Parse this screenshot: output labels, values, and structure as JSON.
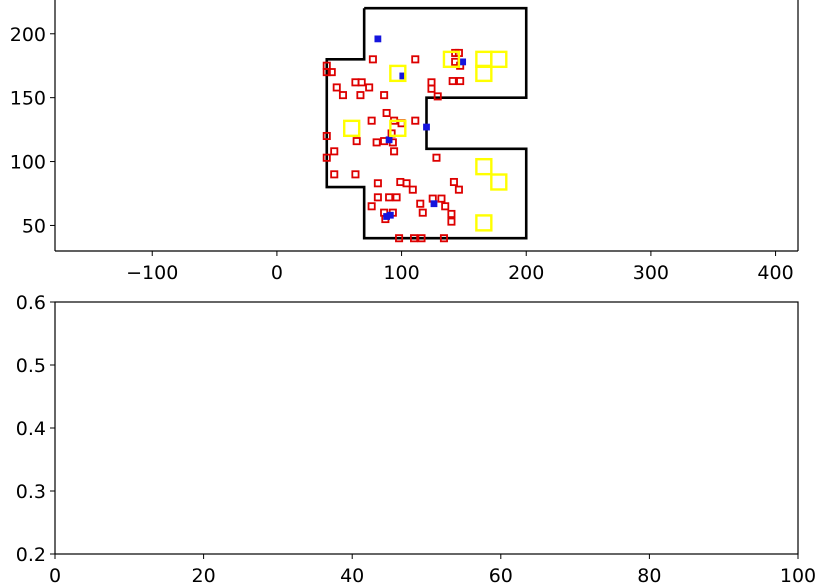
{
  "chart_data": [
    {
      "type": "scatter",
      "xlim": [
        -178,
        418
      ],
      "ylim": [
        30,
        228
      ],
      "xticks": [
        -100,
        0,
        100,
        200,
        300,
        400
      ],
      "xtick_labels": [
        "−100",
        "0",
        "100",
        "200",
        "300",
        "400"
      ],
      "yticks": [
        50,
        100,
        150,
        200
      ],
      "ytick_labels": [
        "50",
        "100",
        "150",
        "200"
      ],
      "grid": false,
      "boundary": {
        "color": "#000000",
        "points": [
          [
            70,
            220
          ],
          [
            200,
            220
          ],
          [
            200,
            150
          ],
          [
            120,
            150
          ],
          [
            120,
            110
          ],
          [
            200,
            110
          ],
          [
            200,
            40
          ],
          [
            70,
            40
          ],
          [
            70,
            80
          ],
          [
            40,
            80
          ],
          [
            40,
            180
          ],
          [
            70,
            180
          ],
          [
            70,
            220
          ]
        ]
      },
      "series": [
        {
          "marker": "square",
          "color": "#dd0000",
          "size_units": 5,
          "points": [
            [
              40,
              175
            ],
            [
              40,
              170
            ],
            [
              44,
              170
            ],
            [
              48,
              158
            ],
            [
              53,
              152
            ],
            [
              40,
              120
            ],
            [
              40,
              103
            ],
            [
              46,
              108
            ],
            [
              63,
              162
            ],
            [
              68,
              162
            ],
            [
              67,
              152
            ],
            [
              74,
              158
            ],
            [
              86,
              152
            ],
            [
              77,
              180
            ],
            [
              111,
              180
            ],
            [
              76,
              132
            ],
            [
              88,
              138
            ],
            [
              94,
              132
            ],
            [
              111,
              132
            ],
            [
              64,
              116
            ],
            [
              80,
              115
            ],
            [
              86,
              116
            ],
            [
              93,
              115
            ],
            [
              94,
              108
            ],
            [
              92,
              122
            ],
            [
              100,
              130
            ],
            [
              124,
              162
            ],
            [
              124,
              157
            ],
            [
              129,
              151
            ],
            [
              141,
              163
            ],
            [
              147,
              163
            ],
            [
              143,
              178
            ],
            [
              147,
              175
            ],
            [
              128,
              103
            ],
            [
              46,
              90
            ],
            [
              63,
              90
            ],
            [
              81,
              83
            ],
            [
              99,
              84
            ],
            [
              109,
              78
            ],
            [
              142,
              84
            ],
            [
              146,
              78
            ],
            [
              90,
              72
            ],
            [
              81,
              72
            ],
            [
              96,
              72
            ],
            [
              76,
              65
            ],
            [
              115,
              67
            ],
            [
              117,
              60
            ],
            [
              125,
              71
            ],
            [
              132,
              71
            ],
            [
              135,
              65
            ],
            [
              140,
              59
            ],
            [
              140,
              53
            ],
            [
              86,
              60
            ],
            [
              93,
              60
            ],
            [
              87,
              55
            ],
            [
              98,
              40
            ],
            [
              110,
              40
            ],
            [
              116,
              40
            ],
            [
              134,
              40
            ],
            [
              104,
              83
            ],
            [
              143,
              185
            ],
            [
              146,
              185
            ]
          ]
        },
        {
          "marker": "square",
          "color": "#1515dd",
          "size_units": 4,
          "points": [
            [
              81,
              196
            ],
            [
              101,
              167
            ],
            [
              149,
              178
            ],
            [
              120,
              127
            ],
            [
              90,
              117
            ],
            [
              126,
              67
            ],
            [
              91,
              58
            ],
            [
              88,
              57
            ]
          ]
        },
        {
          "marker": "square",
          "color": "#ffff00",
          "size_units": 12,
          "points": [
            [
              97,
              169
            ],
            [
              140,
              180
            ],
            [
              166,
              180
            ],
            [
              178,
              180
            ],
            [
              166,
              169
            ],
            [
              60,
              126
            ],
            [
              97,
              126
            ],
            [
              166,
              96
            ],
            [
              178,
              84
            ],
            [
              166,
              52
            ]
          ]
        }
      ]
    },
    {
      "type": "scatter",
      "xlim": [
        0,
        100
      ],
      "ylim": [
        0.2,
        0.6
      ],
      "xticks": [
        0,
        20,
        40,
        60,
        80,
        100
      ],
      "xtick_labels": [
        "0",
        "20",
        "40",
        "60",
        "80",
        "100"
      ],
      "yticks": [
        0.2,
        0.3,
        0.4,
        0.5,
        0.6
      ],
      "ytick_labels": [
        "0.2",
        "0.3",
        "0.4",
        "0.5",
        "0.6"
      ],
      "grid": false,
      "series": []
    }
  ]
}
